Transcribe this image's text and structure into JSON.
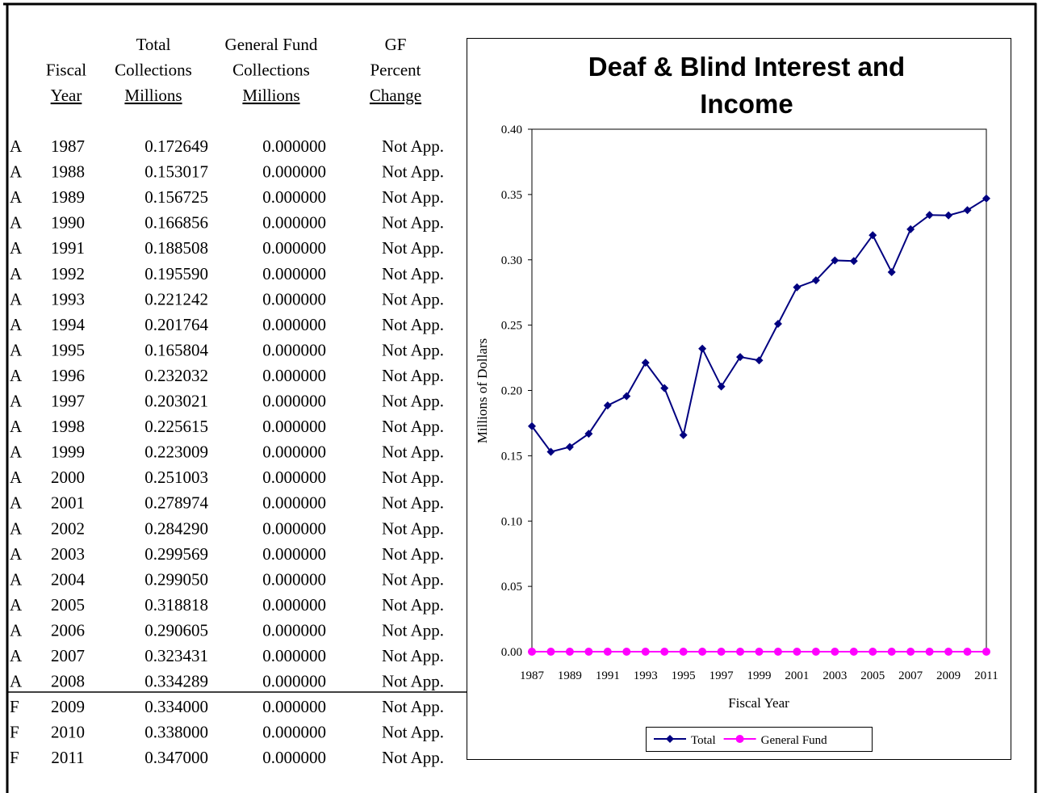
{
  "table": {
    "columns": [
      {
        "lines": [
          "Fiscal",
          "Year"
        ]
      },
      {
        "lines": [
          "Total",
          "Collections",
          "Millions"
        ]
      },
      {
        "lines": [
          "General Fund",
          "Collections",
          "Millions"
        ]
      },
      {
        "lines": [
          "GF",
          "Percent",
          "Change"
        ]
      }
    ],
    "rows": [
      [
        "A",
        "1987",
        "0.172649",
        "0.000000",
        "Not App."
      ],
      [
        "A",
        "1988",
        "0.153017",
        "0.000000",
        "Not App."
      ],
      [
        "A",
        "1989",
        "0.156725",
        "0.000000",
        "Not App."
      ],
      [
        "A",
        "1990",
        "0.166856",
        "0.000000",
        "Not App."
      ],
      [
        "A",
        "1991",
        "0.188508",
        "0.000000",
        "Not App."
      ],
      [
        "A",
        "1992",
        "0.195590",
        "0.000000",
        "Not App."
      ],
      [
        "A",
        "1993",
        "0.221242",
        "0.000000",
        "Not App."
      ],
      [
        "A",
        "1994",
        "0.201764",
        "0.000000",
        "Not App."
      ],
      [
        "A",
        "1995",
        "0.165804",
        "0.000000",
        "Not App."
      ],
      [
        "A",
        "1996",
        "0.232032",
        "0.000000",
        "Not App."
      ],
      [
        "A",
        "1997",
        "0.203021",
        "0.000000",
        "Not App."
      ],
      [
        "A",
        "1998",
        "0.225615",
        "0.000000",
        "Not App."
      ],
      [
        "A",
        "1999",
        "0.223009",
        "0.000000",
        "Not App."
      ],
      [
        "A",
        "2000",
        "0.251003",
        "0.000000",
        "Not App."
      ],
      [
        "A",
        "2001",
        "0.278974",
        "0.000000",
        "Not App."
      ],
      [
        "A",
        "2002",
        "0.284290",
        "0.000000",
        "Not App."
      ],
      [
        "A",
        "2003",
        "0.299569",
        "0.000000",
        "Not App."
      ],
      [
        "A",
        "2004",
        "0.299050",
        "0.000000",
        "Not App."
      ],
      [
        "A",
        "2005",
        "0.318818",
        "0.000000",
        "Not App."
      ],
      [
        "A",
        "2006",
        "0.290605",
        "0.000000",
        "Not App."
      ],
      [
        "A",
        "2007",
        "0.323431",
        "0.000000",
        "Not App."
      ],
      [
        "A",
        "2008",
        "0.334289",
        "0.000000",
        "Not App."
      ],
      [
        "F",
        "2009",
        "0.334000",
        "0.000000",
        "Not App."
      ],
      [
        "F",
        "2010",
        "0.338000",
        "0.000000",
        "Not App."
      ],
      [
        "F",
        "2011",
        "0.347000",
        "0.000000",
        "Not App."
      ]
    ]
  },
  "chart_data": {
    "type": "line",
    "title": [
      "Deaf & Blind Interest and",
      "Income"
    ],
    "x_label": "Fiscal Year",
    "y_label": "Millions of Dollars",
    "categories": [
      "1987",
      null,
      "1989",
      null,
      "1991",
      null,
      "1993",
      null,
      "1995",
      null,
      "1997",
      null,
      "1999",
      null,
      "2001",
      null,
      "2003",
      null,
      "2005",
      null,
      "2007",
      null,
      "2009",
      null,
      "2011"
    ],
    "ylim": [
      0,
      0.4
    ],
    "yticks": [
      {
        "value": 0,
        "label": "0.00"
      },
      {
        "value": 0.05,
        "label": "0.05"
      },
      {
        "value": 0.1,
        "label": "0.10"
      },
      {
        "value": 0.15,
        "label": "0.15"
      },
      {
        "value": 0.2,
        "label": "0.20"
      },
      {
        "value": 0.25,
        "label": "0.25"
      },
      {
        "value": 0.3,
        "label": "0.30"
      },
      {
        "value": 0.35,
        "label": "0.35"
      },
      {
        "value": 0.4,
        "label": "0.40"
      }
    ],
    "series": [
      {
        "name": "Total",
        "color": "#000080",
        "marker": "diamond",
        "values": [
          0.172649,
          0.153017,
          0.156725,
          0.166856,
          0.188508,
          0.19559,
          0.221242,
          0.201764,
          0.165804,
          0.232032,
          0.203021,
          0.225615,
          0.223009,
          0.251003,
          0.278974,
          0.28429,
          0.299569,
          0.29905,
          0.318818,
          0.290605,
          0.323431,
          0.334289,
          0.334,
          0.338,
          0.347
        ]
      },
      {
        "name": "General Fund",
        "color": "#ff00ff",
        "marker": "circle",
        "values": [
          0,
          0,
          0,
          0,
          0,
          0,
          0,
          0,
          0,
          0,
          0,
          0,
          0,
          0,
          0,
          0,
          0,
          0,
          0,
          0,
          0,
          0,
          0,
          0,
          0
        ]
      }
    ]
  }
}
